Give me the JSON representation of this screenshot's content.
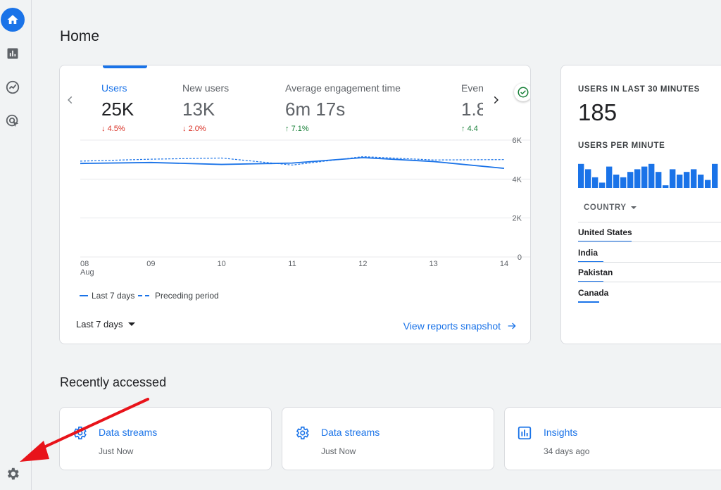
{
  "page": {
    "title": "Home"
  },
  "rail": {
    "icons": [
      "home-icon",
      "reports-icon",
      "explore-icon",
      "advertising-icon",
      "settings-icon"
    ]
  },
  "metrics": [
    {
      "label": "Users",
      "value": "25K",
      "delta": "4.5%",
      "direction": "down",
      "active": true
    },
    {
      "label": "New users",
      "value": "13K",
      "delta": "2.0%",
      "direction": "down",
      "active": false
    },
    {
      "label": "Average engagement time",
      "value": "6m 17s",
      "delta": "7.1%",
      "direction": "up",
      "active": false
    },
    {
      "label": "Even",
      "value": "1.8",
      "delta": "4.4",
      "direction": "up",
      "active": false
    }
  ],
  "chart_data": {
    "type": "line",
    "x": [
      "08\nAug",
      "09",
      "10",
      "11",
      "12",
      "13",
      "14"
    ],
    "x_labels": [
      "08",
      "09",
      "10",
      "11",
      "12",
      "13",
      "14"
    ],
    "x_sublabel": "Aug",
    "y_ticks": [
      "6K",
      "4K",
      "2K",
      "0"
    ],
    "ylim": [
      0,
      6000
    ],
    "series": [
      {
        "name": "Last 7 days",
        "style": "solid",
        "color": "#1a73e8",
        "values": [
          4800,
          4850,
          4750,
          4820,
          5100,
          4900,
          4550
        ]
      },
      {
        "name": "Preceding period",
        "style": "dashed",
        "color": "#1a73e8",
        "values": [
          4920,
          5020,
          5080,
          4720,
          5150,
          4980,
          5000
        ]
      }
    ]
  },
  "overview": {
    "date_range": "Last 7 days",
    "link": "View reports snapshot"
  },
  "realtime": {
    "heading": "USERS IN LAST 30 MINUTES",
    "value": "185",
    "sub_heading": "USERS PER MINUTE",
    "per_minute": [
      9,
      7,
      4,
      2,
      8,
      5,
      4,
      6,
      7,
      8,
      9,
      6,
      1,
      7,
      5,
      6,
      7,
      5,
      3,
      9
    ],
    "country_header": "COUNTRY",
    "countries": [
      {
        "name": "United States",
        "share": 0.5
      },
      {
        "name": "India",
        "share": 0.24
      },
      {
        "name": "Pakistan",
        "share": 0.24
      },
      {
        "name": "Canada",
        "share": 0.2
      }
    ]
  },
  "recent": {
    "heading": "Recently accessed",
    "items": [
      {
        "title": "Data streams",
        "time": "Just Now",
        "icon": "gear-icon"
      },
      {
        "title": "Data streams",
        "time": "Just Now",
        "icon": "gear-icon"
      },
      {
        "title": "Insights",
        "time": "34 days ago",
        "icon": "insights-icon"
      }
    ]
  },
  "annotation": {
    "color": "#e8131a"
  }
}
